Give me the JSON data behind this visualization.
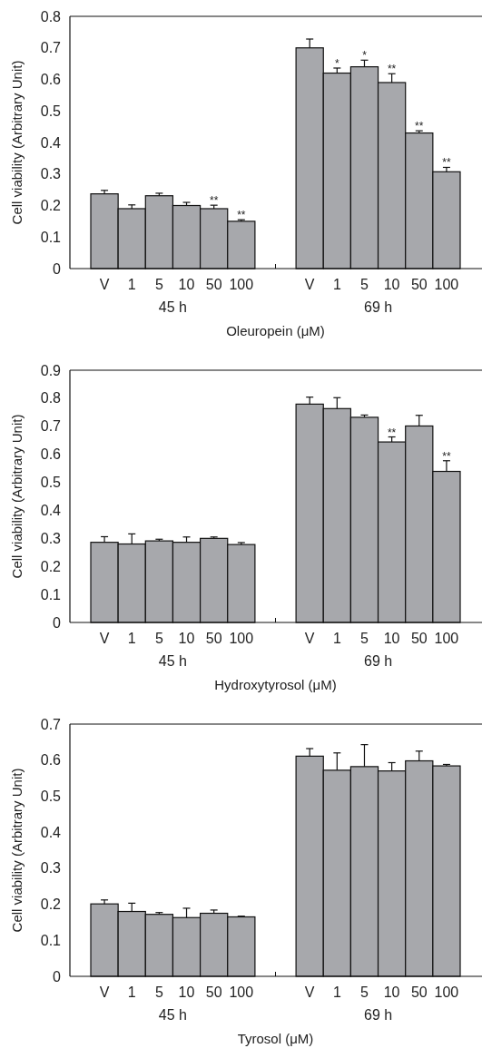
{
  "chart_data": [
    {
      "type": "bar",
      "xlabel": "Oleuropein (μM)",
      "ylabel": "Cell viability (Arbitrary Unit)",
      "categories": [
        "V",
        "1",
        "5",
        "10",
        "50",
        "100",
        null,
        "V",
        "1",
        "5",
        "10",
        "50",
        "100"
      ],
      "values": [
        0.237,
        0.19,
        0.231,
        0.2,
        0.19,
        0.15,
        null,
        0.7,
        0.62,
        0.64,
        0.59,
        0.43,
        0.307
      ],
      "errors": [
        0.011,
        0.012,
        0.008,
        0.01,
        0.011,
        0.005,
        null,
        0.028,
        0.016,
        0.021,
        0.028,
        0.007,
        0.014
      ],
      "value_labels": [
        null,
        null,
        null,
        null,
        "**",
        "**",
        null,
        null,
        "*",
        "*",
        "**",
        "**",
        "**"
      ],
      "color": "#a7a8ac",
      "ylim": [
        0,
        0.8
      ],
      "yticks": [
        0,
        0.1,
        0.2,
        0.3,
        0.4,
        0.5,
        0.6,
        0.7,
        0.8
      ],
      "annotations": [
        "45 h",
        "69 h"
      ]
    },
    {
      "type": "bar",
      "xlabel": "Hydroxytyrosol (μM)",
      "ylabel": "Cell viability (Arbitrary Unit)",
      "categories": [
        "V",
        "1",
        "5",
        "10",
        "50",
        "100",
        null,
        "V",
        "1",
        "5",
        "10",
        "50",
        "100"
      ],
      "values": [
        0.286,
        0.28,
        0.291,
        0.286,
        0.3,
        0.278,
        null,
        0.779,
        0.763,
        0.732,
        0.644,
        0.701,
        0.539
      ],
      "errors": [
        0.02,
        0.036,
        0.006,
        0.019,
        0.005,
        0.007,
        null,
        0.025,
        0.039,
        0.008,
        0.018,
        0.038,
        0.038
      ],
      "value_labels": [
        null,
        null,
        null,
        null,
        null,
        null,
        null,
        null,
        null,
        null,
        "**",
        null,
        "**"
      ],
      "color": "#a7a8ac",
      "ylim": [
        0,
        0.9
      ],
      "yticks": [
        0,
        0.1,
        0.2,
        0.3,
        0.4,
        0.5,
        0.6,
        0.7,
        0.8,
        0.9
      ],
      "annotations": [
        "45 h",
        "69 h"
      ]
    },
    {
      "type": "bar",
      "xlabel": "Tyrosol (μM)",
      "ylabel": "Cell viability (Arbitrary Unit)",
      "categories": [
        "V",
        "1",
        "5",
        "10",
        "50",
        "100",
        null,
        "V",
        "1",
        "5",
        "10",
        "50",
        "100"
      ],
      "values": [
        0.201,
        0.18,
        0.172,
        0.163,
        0.175,
        0.165,
        null,
        0.611,
        0.572,
        0.582,
        0.57,
        0.598,
        0.584
      ],
      "errors": [
        0.011,
        0.023,
        0.005,
        0.026,
        0.009,
        0.002,
        null,
        0.021,
        0.048,
        0.061,
        0.023,
        0.027,
        0.004
      ],
      "color": "#a7a8ac",
      "ylim": [
        0,
        0.7
      ],
      "yticks": [
        0,
        0.1,
        0.2,
        0.3,
        0.4,
        0.5,
        0.6,
        0.7
      ],
      "annotations": [
        "45 h",
        "69 h"
      ]
    }
  ]
}
